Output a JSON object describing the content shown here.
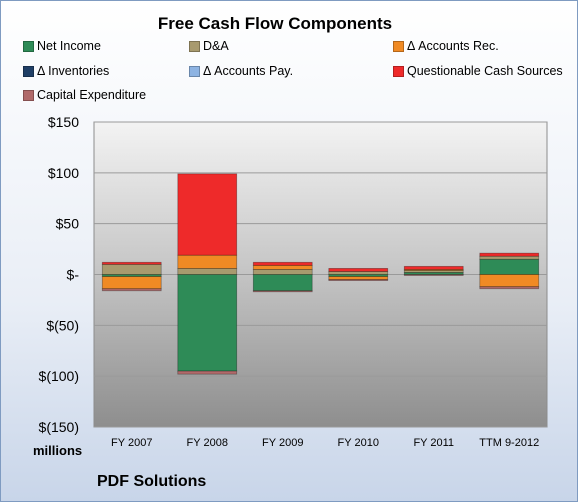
{
  "chart_data": {
    "type": "bar",
    "stacked": true,
    "title": "Free Cash Flow Components",
    "units_label": "millions",
    "company": "PDF Solutions",
    "categories": [
      "FY 2007",
      "FY 2008",
      "FY 2009",
      "FY 2010",
      "FY 2011",
      "TTM 9-2012"
    ],
    "ylim": [
      -150,
      150
    ],
    "yticks": [
      {
        "value": 150,
        "label": "$150"
      },
      {
        "value": 100,
        "label": "$100"
      },
      {
        "value": 50,
        "label": "$50"
      },
      {
        "value": 0,
        "label": "$-"
      },
      {
        "value": -50,
        "label": "$(50)"
      },
      {
        "value": -100,
        "label": "$(100)"
      },
      {
        "value": -150,
        "label": "$(150)"
      }
    ],
    "grid": true,
    "legend_position": "top",
    "series": [
      {
        "name": "Net Income",
        "color": "#2e8b57",
        "values": [
          -2,
          -95,
          -16,
          -2,
          2,
          15
        ]
      },
      {
        "name": "D&A",
        "color": "#a89a6e",
        "values": [
          10,
          6,
          5,
          3,
          2,
          3
        ]
      },
      {
        "name": "Δ Accounts Rec.",
        "color": "#f08a24",
        "values": [
          -12,
          13,
          4,
          -3,
          1,
          -12
        ]
      },
      {
        "name": "Δ Inventories",
        "color": "#1f3f66",
        "values": [
          0,
          0,
          0,
          0,
          0,
          0
        ]
      },
      {
        "name": "Δ Accounts Pay.",
        "color": "#8db3e2",
        "values": [
          0,
          0,
          0,
          0,
          0,
          0
        ]
      },
      {
        "name": "Questionable Cash Sources",
        "color": "#ee2a2a",
        "values": [
          2,
          80,
          3,
          3,
          3,
          3
        ]
      },
      {
        "name": "Capital Expenditure",
        "color": "#b06a6a",
        "values": [
          -2,
          -3,
          -1,
          -1,
          -1,
          -2
        ]
      }
    ]
  }
}
